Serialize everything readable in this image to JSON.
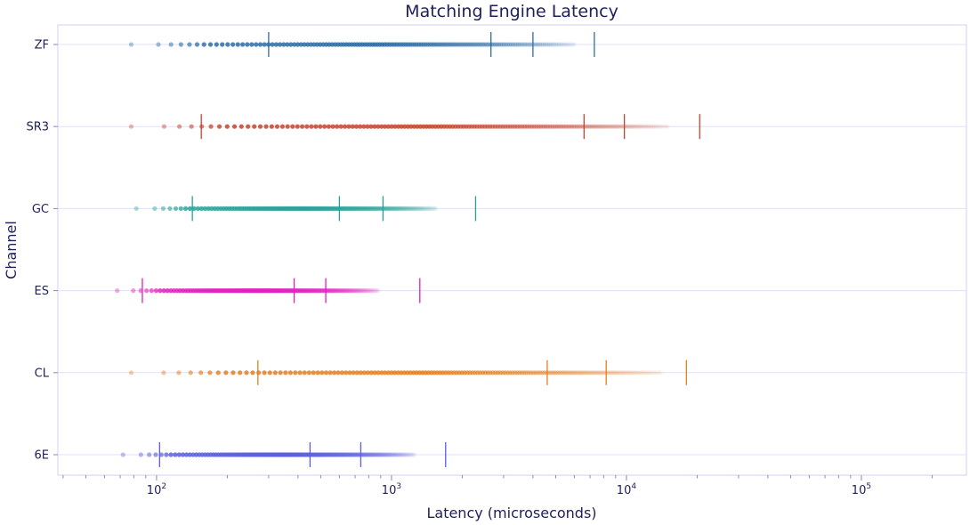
{
  "chart_data": {
    "type": "scatter",
    "title": "Matching Engine Latency",
    "xlabel": "Latency (microseconds)",
    "ylabel": "Channel",
    "xscale": "log",
    "xlim": [
      38,
      280000
    ],
    "xticks": [
      {
        "value": 100,
        "base": "10",
        "exp": "2"
      },
      {
        "value": 1000,
        "base": "10",
        "exp": "3"
      },
      {
        "value": 10000,
        "base": "10",
        "exp": "4"
      },
      {
        "value": 100000,
        "base": "10",
        "exp": "5"
      }
    ],
    "grid": true,
    "categories": [
      "ZF",
      "SR3",
      "GC",
      "ES",
      "CL",
      "6E"
    ],
    "series": [
      {
        "name": "ZF",
        "color": "#2e6da4",
        "min": 78,
        "max": 6000,
        "markers": [
          300,
          2650,
          4000,
          7300
        ]
      },
      {
        "name": "SR3",
        "color": "#c4452c",
        "min": 78,
        "max": 15000,
        "markers": [
          155,
          6600,
          9800,
          20500
        ]
      },
      {
        "name": "GC",
        "color": "#2aa198",
        "min": 82,
        "max": 1550,
        "markers": [
          142,
          600,
          920,
          2280
        ]
      },
      {
        "name": "ES",
        "color": "#e020c0",
        "min": 68,
        "max": 880,
        "markers": [
          87,
          385,
          525,
          1320
        ]
      },
      {
        "name": "CL",
        "color": "#e87e1c",
        "min": 78,
        "max": 14000,
        "markers": [
          270,
          4600,
          8200,
          18000
        ]
      },
      {
        "name": "6E",
        "color": "#5a5ee0",
        "min": 72,
        "max": 1250,
        "markers": [
          103,
          450,
          740,
          1700
        ]
      }
    ]
  }
}
